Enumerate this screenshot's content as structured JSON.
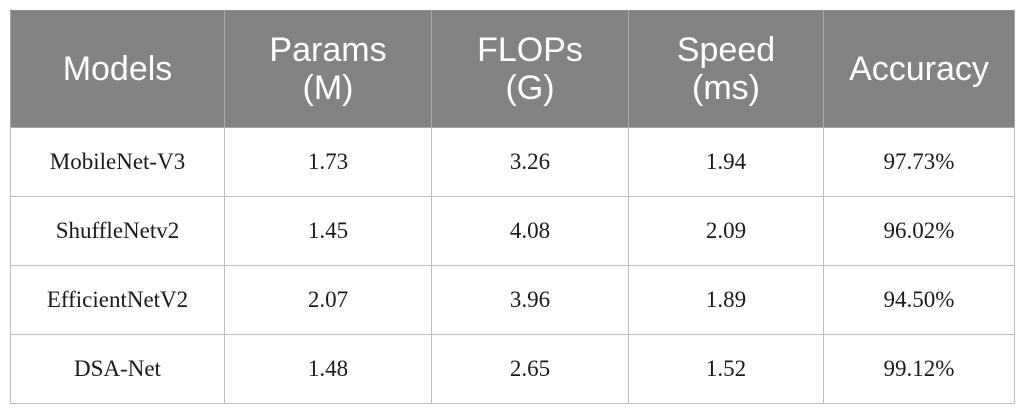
{
  "table": {
    "headers": [
      [
        "Models"
      ],
      [
        "Params",
        "(M)"
      ],
      [
        "FLOPs",
        "(G)"
      ],
      [
        "Speed",
        "(ms)"
      ],
      [
        "Accuracy"
      ]
    ],
    "rows": [
      [
        "MobileNet-V3",
        "1.73",
        "3.26",
        "1.94",
        "97.73%"
      ],
      [
        "ShuffleNetv2",
        "1.45",
        "4.08",
        "2.09",
        "96.02%"
      ],
      [
        "EfficientNetV2",
        "2.07",
        "3.96",
        "1.89",
        "94.50%"
      ],
      [
        "DSA-Net",
        "1.48",
        "2.65",
        "1.52",
        "99.12%"
      ]
    ]
  },
  "colors": {
    "header_bg": "#838383",
    "header_text": "#ffffff",
    "cell_text": "#1a1a1a",
    "grid": "#bdbdbd"
  }
}
